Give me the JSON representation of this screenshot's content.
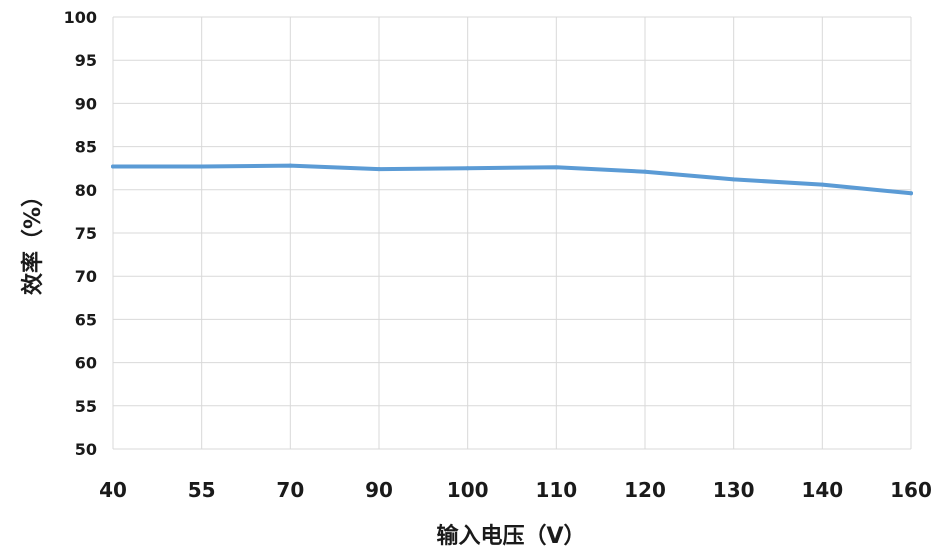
{
  "chart_data": {
    "type": "line",
    "title": "",
    "xlabel": "输入电压（V）",
    "ylabel": "效率（%）",
    "categories": [
      "40",
      "55",
      "70",
      "90",
      "100",
      "110",
      "120",
      "130",
      "140",
      "160"
    ],
    "yticks": [
      "50",
      "55",
      "60",
      "65",
      "70",
      "75",
      "80",
      "85",
      "90",
      "95",
      "100"
    ],
    "ylim": [
      50,
      100
    ],
    "grid": true,
    "legend": "none",
    "series": [
      {
        "values": [
          82.7,
          82.7,
          82.8,
          82.4,
          82.5,
          82.6,
          82.1,
          81.2,
          80.6,
          79.6
        ],
        "color": "#5b9bd5"
      }
    ]
  }
}
